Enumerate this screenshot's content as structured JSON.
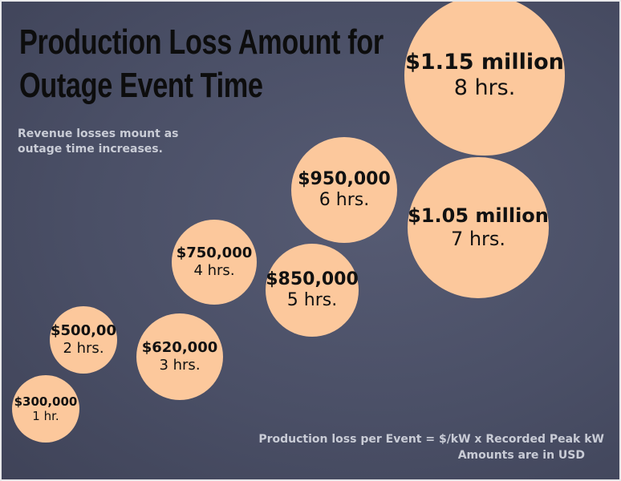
{
  "header": {
    "title_lines": [
      "Production Loss Amount for",
      "Outage Event Time"
    ],
    "subtitle_lines": [
      "Revenue losses mount as",
      "outage time increases."
    ]
  },
  "bubbles": [
    {
      "amount": "$300,000",
      "duration": "1 hr."
    },
    {
      "amount": "$500,00",
      "duration": "2 hrs."
    },
    {
      "amount": "$620,000",
      "duration": "3 hrs."
    },
    {
      "amount": "$750,000",
      "duration": "4 hrs."
    },
    {
      "amount": "$850,000",
      "duration": "5 hrs."
    },
    {
      "amount": "$950,000",
      "duration": "6 hrs."
    },
    {
      "amount": "$1.05 million",
      "duration": "7 hrs."
    },
    {
      "amount": "$1.15 million",
      "duration": "8 hrs."
    }
  ],
  "footer": {
    "formula": "Production loss per Event = $/kW x Recorded Peak kW",
    "note": "Amounts are in USD"
  }
}
